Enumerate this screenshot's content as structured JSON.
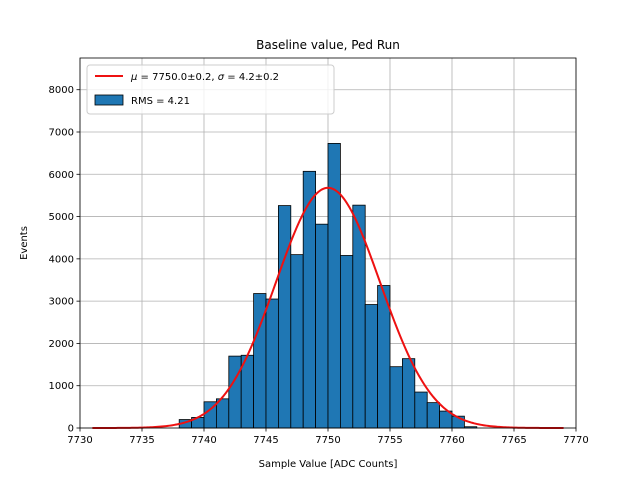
{
  "chart_data": {
    "type": "bar",
    "title": "Baseline value, Ped Run",
    "xlabel": "Sample Value [ADC Counts]",
    "ylabel": "Events",
    "xlim": [
      7730,
      7770
    ],
    "ylim": [
      0,
      8750
    ],
    "xticks": [
      7730,
      7735,
      7740,
      7745,
      7750,
      7755,
      7760,
      7765,
      7770
    ],
    "yticks": [
      0,
      1000,
      2000,
      3000,
      4000,
      5000,
      6000,
      7000,
      8000
    ],
    "grid": true,
    "legend_position": "top-left",
    "histogram": {
      "name": "RMS = 4.21",
      "color": "#1f77b4",
      "edge_color": "#000000",
      "bin_edges": [
        7738,
        7739,
        7740,
        7741,
        7742,
        7743,
        7744,
        7745,
        7746,
        7747,
        7748,
        7749,
        7750,
        7751,
        7752,
        7753,
        7754,
        7755,
        7756,
        7757,
        7758,
        7759,
        7760,
        7761,
        7762
      ],
      "counts": [
        200,
        250,
        620,
        690,
        1700,
        1720,
        3180,
        3050,
        5260,
        4100,
        6070,
        4820,
        6730,
        4080,
        5270,
        2920,
        3370,
        1450,
        1640,
        850,
        600,
        400,
        280,
        30
      ]
    },
    "fit": {
      "name": "$\\mu = 7750.0\\pm0.2$, $\\sigma = 4.2\\pm0.2$",
      "color": "#ee1111",
      "amplitude": 5680,
      "mu": 7750.0,
      "sigma": 4.2,
      "x_range": [
        7731,
        7769
      ]
    }
  }
}
